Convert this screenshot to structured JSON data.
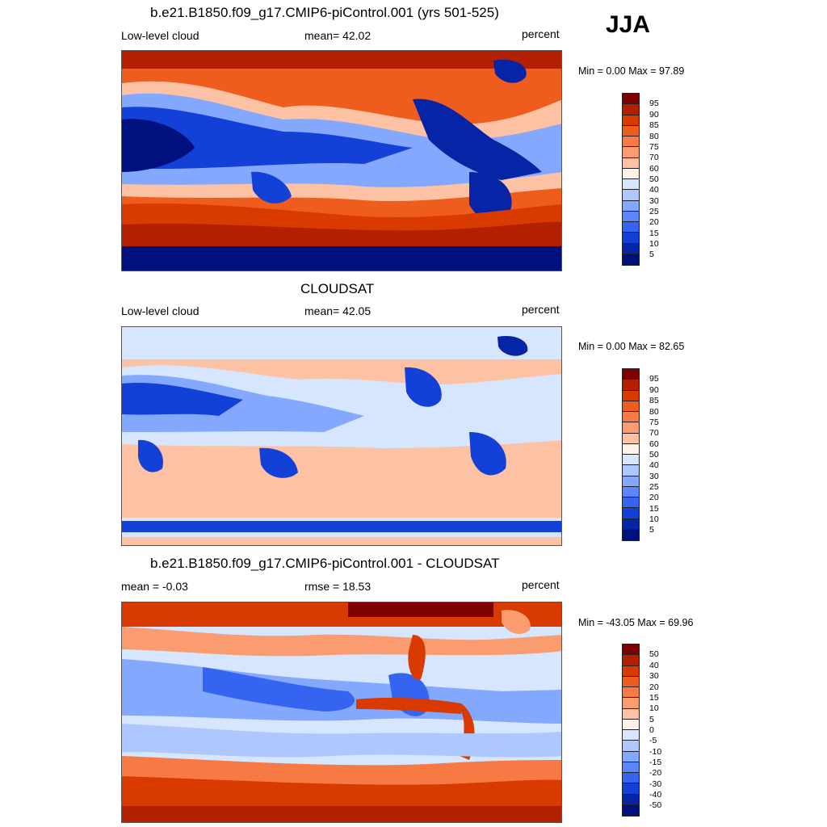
{
  "season": "JJA",
  "panel1": {
    "title": "b.e21.B1850.f09_g17.CMIP6-piControl.001 (yrs 501-525)",
    "left": "Low-level cloud",
    "center": "mean=  42.02",
    "right": "percent",
    "minmax": "Min =   0.00 Max =  97.89",
    "levels": [
      "95",
      "90",
      "85",
      "80",
      "75",
      "70",
      "60",
      "50",
      "40",
      "30",
      "25",
      "20",
      "15",
      "10",
      "5"
    ]
  },
  "panel2": {
    "title": "CLOUDSAT",
    "left": "Low-level cloud",
    "center": "mean=  42.05",
    "right": "percent",
    "minmax": "Min =   0.00 Max =  82.65",
    "levels": [
      "95",
      "90",
      "85",
      "80",
      "75",
      "70",
      "60",
      "50",
      "40",
      "30",
      "25",
      "20",
      "15",
      "10",
      "5"
    ]
  },
  "panel3": {
    "title": "b.e21.B1850.f09_g17.CMIP6-piControl.001 - CLOUDSAT",
    "left": "mean =  -0.03",
    "center": "rmse =  18.53",
    "right": "percent",
    "minmax": "Min = -43.05 Max =  69.96",
    "levels": [
      "50",
      "40",
      "30",
      "20",
      "15",
      "10",
      "5",
      "0",
      "-5",
      "-10",
      "-15",
      "-20",
      "-30",
      "-40",
      "-50"
    ]
  },
  "colors": {
    "scale": [
      "#7f0000",
      "#b22000",
      "#d83a00",
      "#ee5c1e",
      "#f77a45",
      "#fb9b70",
      "#fdc2a3",
      "#fff2e8",
      "#d6e6ff",
      "#aec8ff",
      "#85a8ff",
      "#5c86ff",
      "#3564f0",
      "#1340d6",
      "#0624a6",
      "#00117f"
    ]
  }
}
